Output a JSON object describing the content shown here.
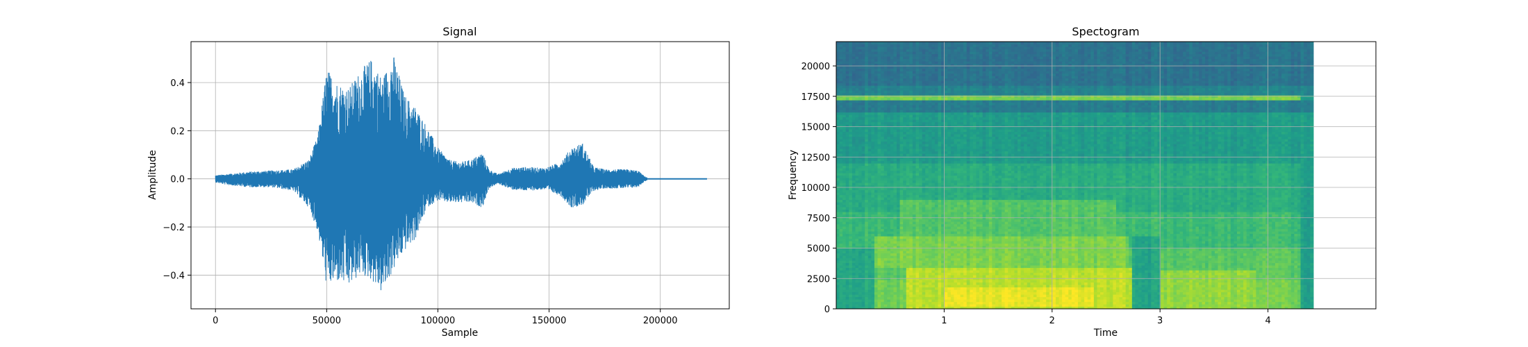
{
  "chart_data": [
    {
      "type": "line",
      "title": "Signal",
      "xlabel": "Sample",
      "ylabel": "Amplitude",
      "xlim": [
        -11000,
        231000
      ],
      "ylim": [
        -0.54,
        0.57
      ],
      "xticks": [
        0,
        50000,
        100000,
        150000,
        200000
      ],
      "xtick_labels": [
        "0",
        "50000",
        "100000",
        "150000",
        "200000"
      ],
      "yticks": [
        -0.4,
        -0.2,
        0.0,
        0.2,
        0.4
      ],
      "ytick_labels": [
        "−0.4",
        "−0.2",
        "0.0",
        "0.2",
        "0.4"
      ],
      "grid": true,
      "color": "#1f77b4",
      "series_envelope": {
        "x": [
          0,
          5000,
          15000,
          25000,
          35000,
          42000,
          46000,
          50000,
          55000,
          60000,
          65000,
          70000,
          75000,
          80000,
          85000,
          90000,
          95000,
          100000,
          105000,
          110000,
          115000,
          120000,
          123000,
          127000,
          133000,
          140000,
          148000,
          155000,
          160000,
          165000,
          170000,
          175000,
          180000,
          185000,
          190000,
          193000,
          196000,
          221000
        ],
        "max": [
          0.015,
          0.02,
          0.03,
          0.035,
          0.04,
          0.08,
          0.18,
          0.46,
          0.4,
          0.38,
          0.45,
          0.5,
          0.42,
          0.52,
          0.35,
          0.3,
          0.22,
          0.13,
          0.08,
          0.07,
          0.08,
          0.11,
          0.04,
          0.02,
          0.045,
          0.05,
          0.045,
          0.07,
          0.13,
          0.15,
          0.05,
          0.04,
          0.04,
          0.04,
          0.035,
          0.01,
          0.002,
          0.002
        ],
        "min": [
          -0.015,
          -0.025,
          -0.035,
          -0.035,
          -0.05,
          -0.12,
          -0.22,
          -0.45,
          -0.43,
          -0.45,
          -0.4,
          -0.42,
          -0.48,
          -0.38,
          -0.3,
          -0.25,
          -0.12,
          -0.09,
          -0.1,
          -0.1,
          -0.1,
          -0.12,
          -0.04,
          -0.02,
          -0.045,
          -0.05,
          -0.045,
          -0.07,
          -0.12,
          -0.11,
          -0.05,
          -0.04,
          -0.04,
          -0.04,
          -0.035,
          -0.01,
          -0.002,
          -0.002
        ]
      }
    },
    {
      "type": "heatmap",
      "title": "Spectogram",
      "xlabel": "Time",
      "ylabel": "Frequency",
      "xlim": [
        0,
        5
      ],
      "ylim": [
        0,
        22000
      ],
      "data_xlim": [
        0,
        4.42
      ],
      "xticks": [
        1,
        2,
        3,
        4
      ],
      "xtick_labels": [
        "1",
        "2",
        "3",
        "4"
      ],
      "yticks": [
        0,
        2500,
        5000,
        7500,
        10000,
        12500,
        15000,
        17500,
        20000
      ],
      "ytick_labels": [
        "0",
        "2500",
        "5000",
        "7500",
        "10000",
        "12500",
        "15000",
        "17500",
        "20000"
      ],
      "grid": true,
      "colormap": "viridis",
      "bands": [
        {
          "f_low": 18500,
          "f_high": 22000,
          "level": 0.38
        },
        {
          "f_low": 17700,
          "f_high": 18500,
          "level": 0.45
        },
        {
          "f_low": 17200,
          "f_high": 17700,
          "level": 0.8
        },
        {
          "f_low": 16300,
          "f_high": 17200,
          "level": 0.42
        },
        {
          "f_low": 12000,
          "f_high": 16300,
          "level": 0.55
        },
        {
          "f_low": 8000,
          "f_high": 12000,
          "level": 0.62
        },
        {
          "f_low": 5000,
          "f_high": 8000,
          "level": 0.68
        },
        {
          "f_low": 2500,
          "f_high": 5000,
          "level": 0.74
        },
        {
          "f_low": 0,
          "f_high": 2500,
          "level": 0.78
        }
      ],
      "hot_regions": [
        {
          "t0": 0.65,
          "t1": 2.75,
          "f0": 0,
          "f1": 3500,
          "level": 0.9
        },
        {
          "t0": 1.0,
          "t1": 2.4,
          "f0": 300,
          "f1": 1800,
          "level": 0.97
        },
        {
          "t0": 3.0,
          "t1": 3.9,
          "f0": 0,
          "f1": 3200,
          "level": 0.84
        },
        {
          "t0": 0.35,
          "t1": 2.7,
          "f0": 3500,
          "f1": 6000,
          "level": 0.8
        },
        {
          "t0": 0.6,
          "t1": 2.6,
          "f0": 6000,
          "f1": 9000,
          "level": 0.73
        }
      ],
      "cool_regions": [
        {
          "t0": 0.0,
          "t1": 0.35,
          "f0": 0,
          "f1": 5000,
          "level": 0.6
        },
        {
          "t0": 2.75,
          "t1": 3.0,
          "f0": 0,
          "f1": 6000,
          "level": 0.58
        },
        {
          "t0": 4.3,
          "t1": 4.42,
          "f0": 0,
          "f1": 22000,
          "level": 0.55
        }
      ]
    }
  ]
}
